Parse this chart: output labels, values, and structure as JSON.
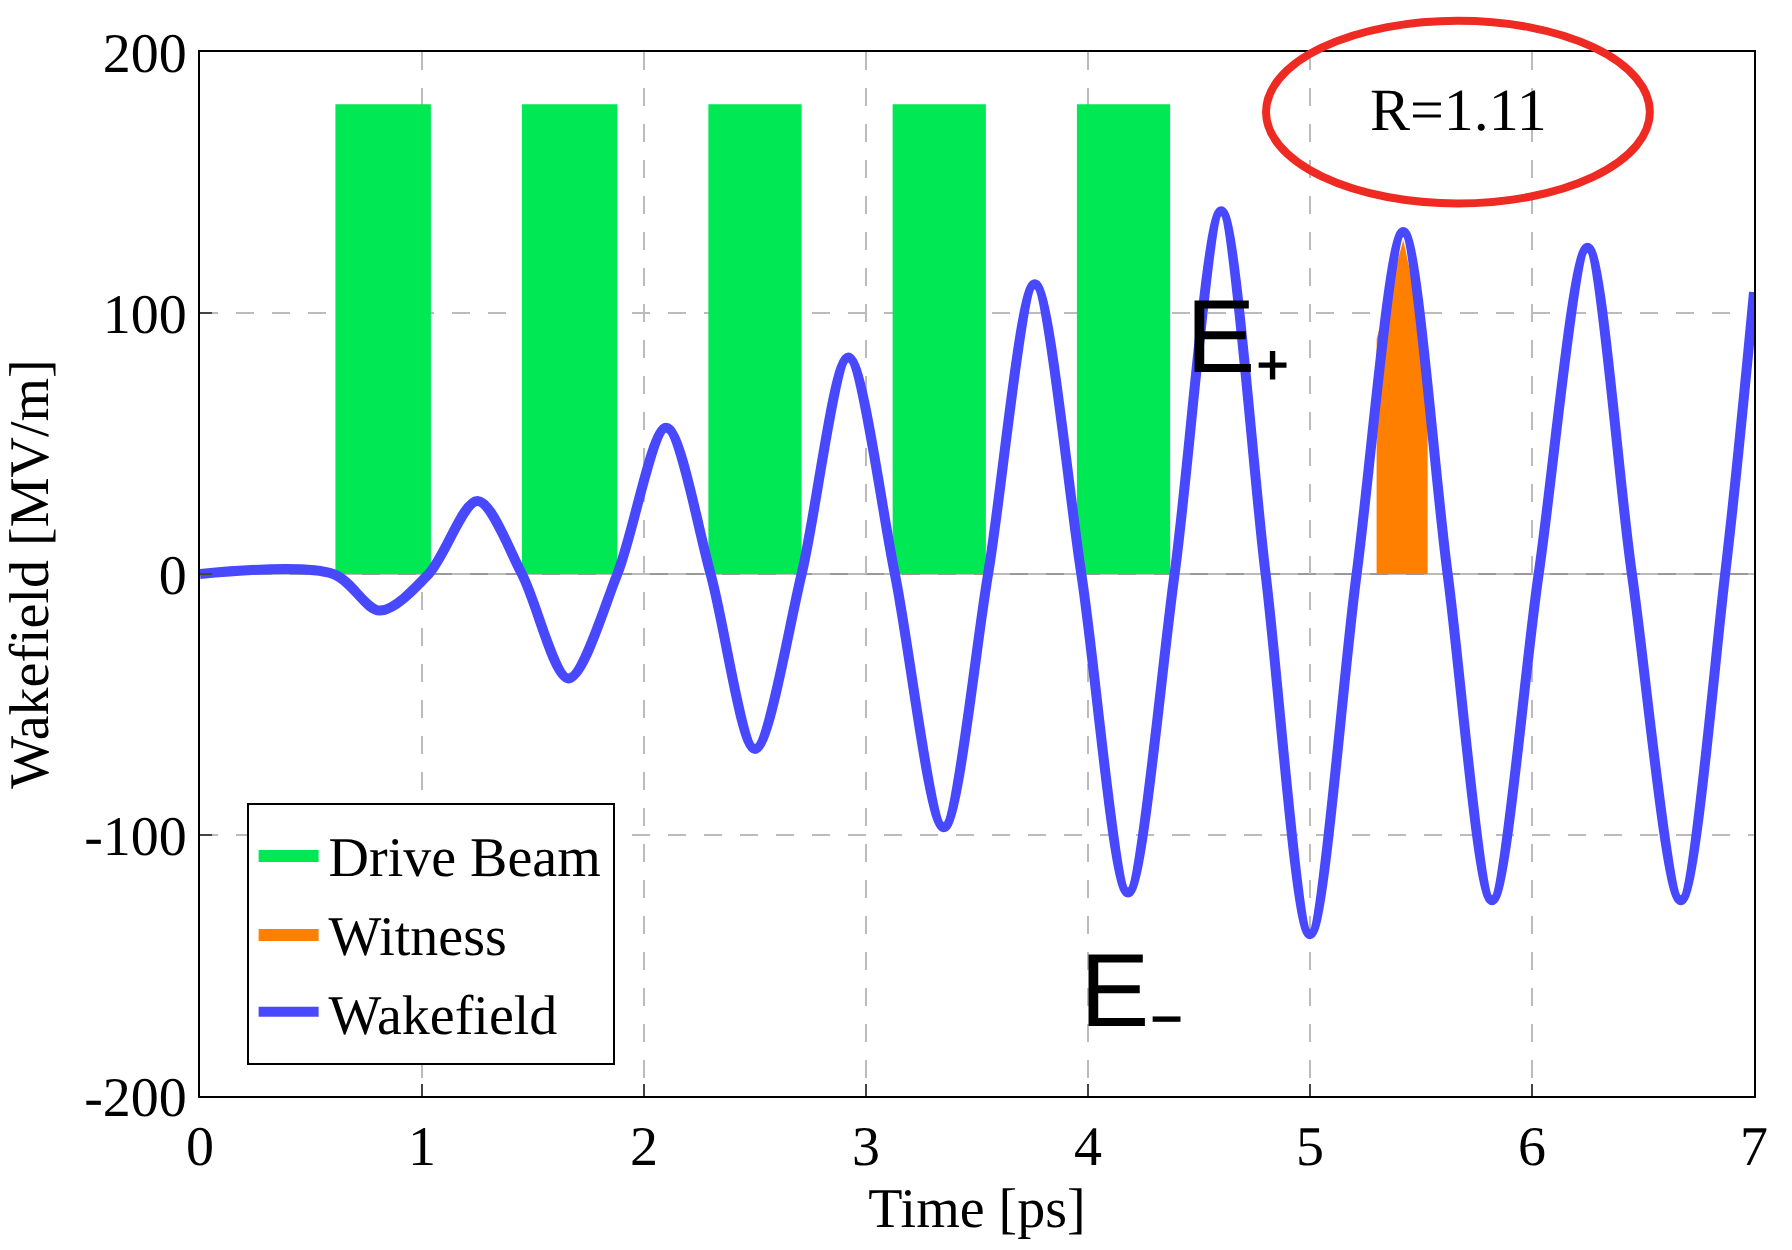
{
  "chart_data": {
    "type": "line",
    "xlabel": "Time [ps]",
    "ylabel": "Wakefield [MV/m]",
    "xlim": [
      0,
      7
    ],
    "ylim": [
      -200,
      200
    ],
    "xticks": [
      0,
      1,
      2,
      3,
      4,
      5,
      6,
      7
    ],
    "yticks": [
      -200,
      -100,
      0,
      100,
      200
    ],
    "grid": true,
    "legend": "bottom left",
    "series": [
      {
        "name": "Drive Beam",
        "type": "area",
        "color": "#00e853",
        "x": [
          0.61,
          0.61,
          1.04,
          1.04,
          1.45,
          1.45,
          1.88,
          1.88,
          2.29,
          2.29,
          2.71,
          2.71,
          3.12,
          3.12,
          3.54,
          3.54,
          3.95,
          3.95,
          4.37,
          4.37
        ],
        "values": [
          0,
          180,
          180,
          0,
          0,
          180,
          180,
          0,
          0,
          180,
          180,
          0,
          0,
          180,
          180,
          0,
          0,
          180,
          180,
          0
        ]
      },
      {
        "name": "Witness",
        "type": "area",
        "color": "#ff7f00",
        "x": [
          5.3,
          5.3,
          5.42,
          5.53,
          5.53
        ],
        "values": [
          0,
          90,
          128,
          85,
          0
        ]
      },
      {
        "name": "Wakefield",
        "color": "#4848ff",
        "x": [
          0,
          0.6,
          0.81,
          1.03,
          1.25,
          1.45,
          1.66,
          1.88,
          2.1,
          2.3,
          2.5,
          2.71,
          2.92,
          3.13,
          3.35,
          3.55,
          3.76,
          3.97,
          4.18,
          4.39,
          4.6,
          4.8,
          5.0,
          5.21,
          5.42,
          5.62,
          5.82,
          6.03,
          6.25,
          6.45,
          6.67,
          6.87,
          7.0
        ],
        "values": [
          0,
          0,
          -14,
          0,
          28,
          0,
          -40,
          0,
          56,
          0,
          -67,
          0,
          83,
          0,
          -97,
          0,
          111,
          0,
          -122,
          0,
          139,
          0,
          -138,
          0,
          131,
          0,
          -125,
          0,
          125,
          0,
          -125,
          0,
          108
        ]
      }
    ],
    "annotations": [
      "E₊",
      "E₋",
      "R=1.11"
    ]
  }
}
